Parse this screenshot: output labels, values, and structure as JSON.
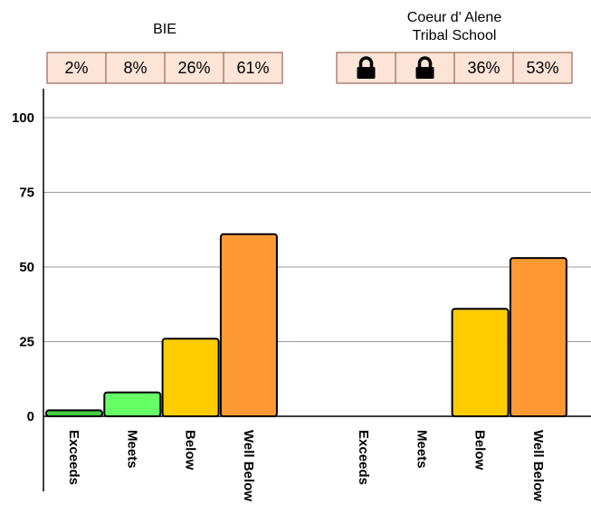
{
  "chart_data": {
    "type": "bar",
    "categories": [
      "Exceeds",
      "Meets",
      "Below",
      "Well Below"
    ],
    "ylim": [
      0,
      100
    ],
    "yticks": [
      0,
      25,
      50,
      75,
      100
    ],
    "grid": true,
    "groups": [
      {
        "title_lines": [
          "BIE"
        ],
        "values": [
          2,
          8,
          26,
          61
        ],
        "percent_labels": [
          "2%",
          "8%",
          "26%",
          "61%"
        ],
        "locked": [
          false,
          false,
          false,
          false
        ]
      },
      {
        "title_lines": [
          "Coeur d' Alene",
          "Tribal School"
        ],
        "values": [
          null,
          null,
          36,
          53
        ],
        "percent_labels": [
          "",
          "",
          "36%",
          "53%"
        ],
        "locked": [
          true,
          true,
          false,
          false
        ]
      }
    ],
    "category_colors": [
      "#44cc44",
      "#66ff66",
      "#ffcc00",
      "#ff9933"
    ],
    "lock_icon": "lock-icon"
  }
}
